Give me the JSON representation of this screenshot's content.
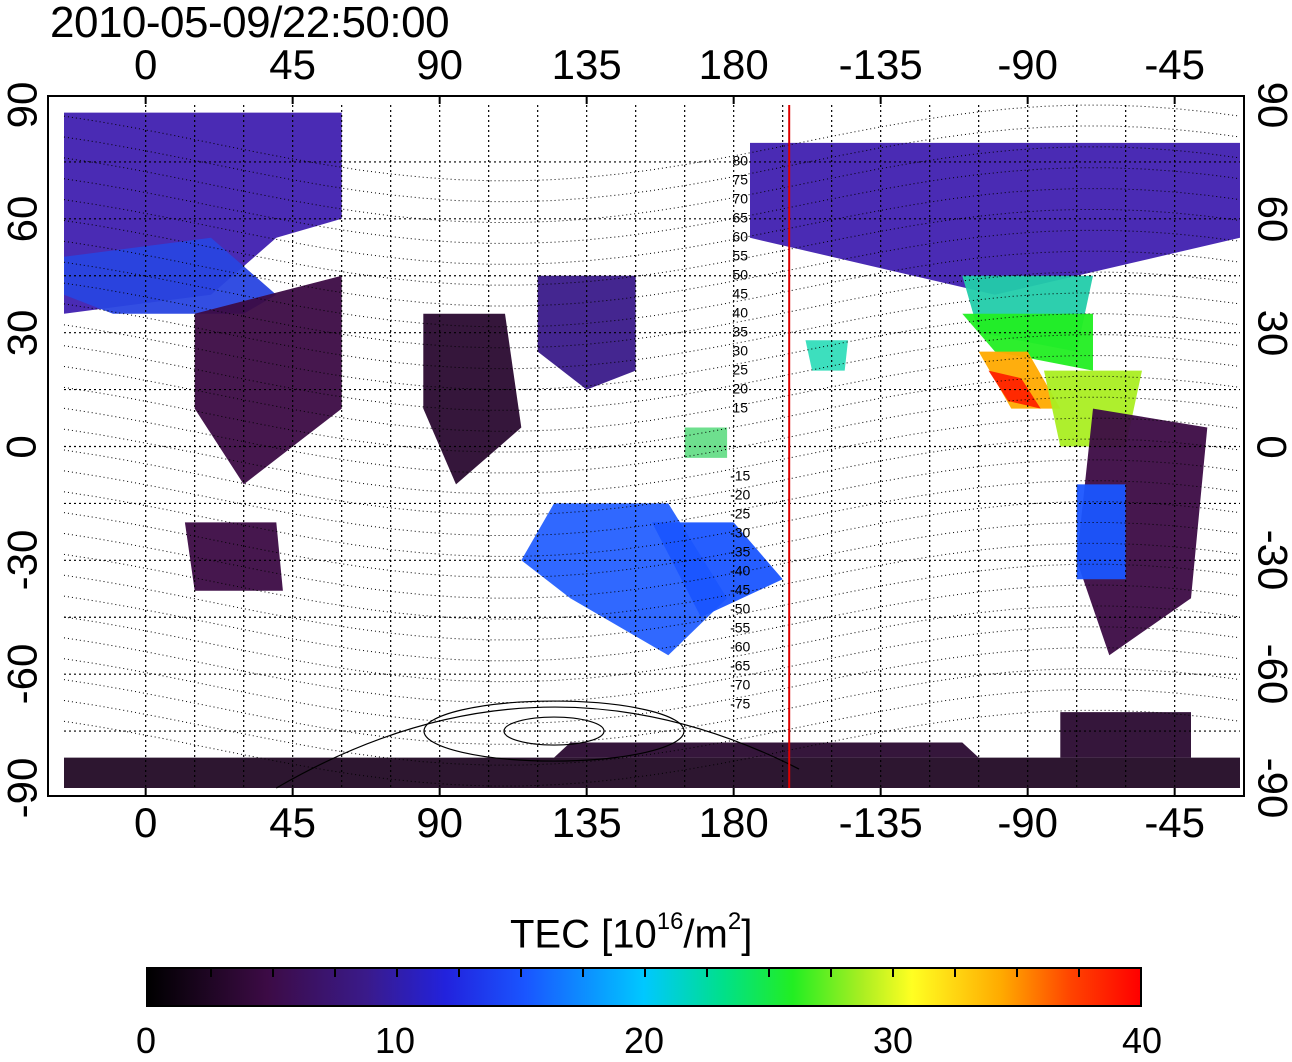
{
  "title": "2010-05-09/22:50:00",
  "top_lon_labels": [
    "0",
    "45",
    "90",
    "135",
    "180",
    "-135",
    "-90",
    "-45"
  ],
  "bottom_lon_labels": [
    "0",
    "45",
    "90",
    "135",
    "180",
    "-135",
    "-90",
    "-45"
  ],
  "lat_labels": [
    "90",
    "60",
    "30",
    "0",
    "-30",
    "-60",
    "-90"
  ],
  "contour_labels": [
    "80",
    "75",
    "70",
    "65",
    "60",
    "55",
    "50",
    "45",
    "40",
    "35",
    "30",
    "25",
    "20",
    "15",
    "-15",
    "-20",
    "-25",
    "-30",
    "-35",
    "-40",
    "-45",
    "-50",
    "-55",
    "-60",
    "-65",
    "-70",
    "-75"
  ],
  "colorbar": {
    "label_main": "TEC  [10",
    "label_exp1": "16",
    "label_mid": "/m",
    "label_exp2": "2",
    "label_end": "]",
    "min": 0,
    "max": 40,
    "tick_labels": [
      "0",
      "10",
      "20",
      "30",
      "40"
    ],
    "colors": [
      "#000000",
      "#3c0b45",
      "#2222dd",
      "#00c8ff",
      "#22ee22",
      "#ffff22",
      "#ff4400",
      "#ff0000"
    ]
  },
  "map_extent": {
    "lon_min": -25,
    "lon_max": 335,
    "lat_min": -90,
    "lat_max": 90
  },
  "terminator_lon": 197,
  "terminator_color": "#dd0000"
}
